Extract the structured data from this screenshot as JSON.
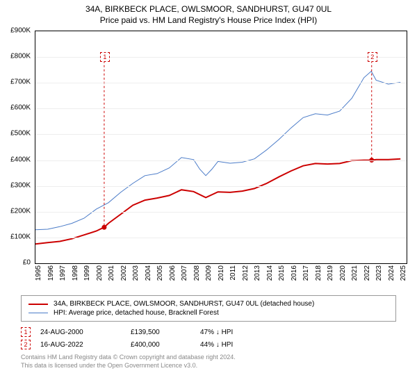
{
  "title": {
    "line1": "34A, BIRKBECK PLACE, OWLSMOOR, SANDHURST, GU47 0UL",
    "line2": "Price paid vs. HM Land Registry's House Price Index (HPI)"
  },
  "chart": {
    "type": "line",
    "background_color": "#ffffff",
    "grid_color": "#eeeeee",
    "border_color": "#000000",
    "ylim": [
      0,
      900
    ],
    "yticks": [
      0,
      100,
      200,
      300,
      400,
      500,
      600,
      700,
      800,
      900
    ],
    "ytick_labels": [
      "£0",
      "£100K",
      "£200K",
      "£300K",
      "£400K",
      "£500K",
      "£600K",
      "£700K",
      "£800K",
      "£900K"
    ],
    "xlim": [
      1995,
      2025.5
    ],
    "xticks": [
      1995,
      1996,
      1997,
      1998,
      1999,
      2000,
      2001,
      2002,
      2003,
      2004,
      2005,
      2006,
      2007,
      2008,
      2009,
      2010,
      2011,
      2012,
      2013,
      2014,
      2015,
      2016,
      2017,
      2018,
      2019,
      2020,
      2021,
      2022,
      2023,
      2024,
      2025
    ],
    "series": [
      {
        "id": "price_paid",
        "label": "34A, BIRKBECK PLACE, OWLSMOOR, SANDHURST, GU47 0UL (detached house)",
        "color": "#cc0000",
        "line_width": 2,
        "points": [
          [
            1995,
            75
          ],
          [
            1996,
            80
          ],
          [
            1997,
            85
          ],
          [
            1998,
            95
          ],
          [
            1999,
            110
          ],
          [
            2000,
            125
          ],
          [
            2000.65,
            139.5
          ],
          [
            2001,
            155
          ],
          [
            2002,
            190
          ],
          [
            2003,
            225
          ],
          [
            2004,
            245
          ],
          [
            2005,
            253
          ],
          [
            2006,
            263
          ],
          [
            2007,
            285
          ],
          [
            2008,
            278
          ],
          [
            2009,
            255
          ],
          [
            2010,
            277
          ],
          [
            2011,
            275
          ],
          [
            2012,
            280
          ],
          [
            2013,
            290
          ],
          [
            2014,
            310
          ],
          [
            2015,
            335
          ],
          [
            2016,
            358
          ],
          [
            2017,
            378
          ],
          [
            2018,
            387
          ],
          [
            2019,
            385
          ],
          [
            2020,
            387
          ],
          [
            2021,
            398
          ],
          [
            2022,
            400
          ],
          [
            2022.63,
            400
          ],
          [
            2023,
            402
          ],
          [
            2024,
            402
          ],
          [
            2025,
            405
          ]
        ]
      },
      {
        "id": "hpi",
        "label": "HPI: Average price, detached house, Bracknell Forest",
        "color": "#4a7bc8",
        "line_width": 1,
        "points": [
          [
            1995,
            130
          ],
          [
            1996,
            132
          ],
          [
            1997,
            142
          ],
          [
            1998,
            155
          ],
          [
            1999,
            175
          ],
          [
            2000,
            210
          ],
          [
            2001,
            235
          ],
          [
            2002,
            275
          ],
          [
            2003,
            310
          ],
          [
            2004,
            340
          ],
          [
            2005,
            348
          ],
          [
            2006,
            370
          ],
          [
            2007,
            410
          ],
          [
            2008,
            402
          ],
          [
            2008.5,
            365
          ],
          [
            2009,
            340
          ],
          [
            2009.5,
            365
          ],
          [
            2010,
            395
          ],
          [
            2011,
            388
          ],
          [
            2012,
            392
          ],
          [
            2013,
            405
          ],
          [
            2014,
            440
          ],
          [
            2015,
            480
          ],
          [
            2016,
            525
          ],
          [
            2017,
            565
          ],
          [
            2018,
            580
          ],
          [
            2019,
            575
          ],
          [
            2020,
            590
          ],
          [
            2021,
            640
          ],
          [
            2022,
            720
          ],
          [
            2022.6,
            745
          ],
          [
            2023,
            710
          ],
          [
            2024,
            695
          ],
          [
            2025,
            702
          ]
        ]
      }
    ],
    "markers": [
      {
        "id": "1",
        "x": 2000.65,
        "y": 139.5,
        "box_y": 820
      },
      {
        "id": "2",
        "x": 2022.63,
        "y": 400,
        "box_y": 820
      }
    ],
    "marker_style": {
      "color": "#cc0000",
      "dash": true
    }
  },
  "legend": {
    "rows": [
      {
        "color": "#cc0000",
        "width": 2,
        "label": "34A, BIRKBECK PLACE, OWLSMOOR, SANDHURST, GU47 0UL (detached house)"
      },
      {
        "color": "#4a7bc8",
        "width": 1,
        "label": "HPI: Average price, detached house, Bracknell Forest"
      }
    ]
  },
  "transactions": [
    {
      "marker": "1",
      "date": "24-AUG-2000",
      "price": "£139,500",
      "hpi_delta": "47% ↓ HPI"
    },
    {
      "marker": "2",
      "date": "16-AUG-2022",
      "price": "£400,000",
      "hpi_delta": "44% ↓ HPI"
    }
  ],
  "footnote": {
    "line1": "Contains HM Land Registry data © Crown copyright and database right 2024.",
    "line2": "This data is licensed under the Open Government Licence v3.0."
  }
}
